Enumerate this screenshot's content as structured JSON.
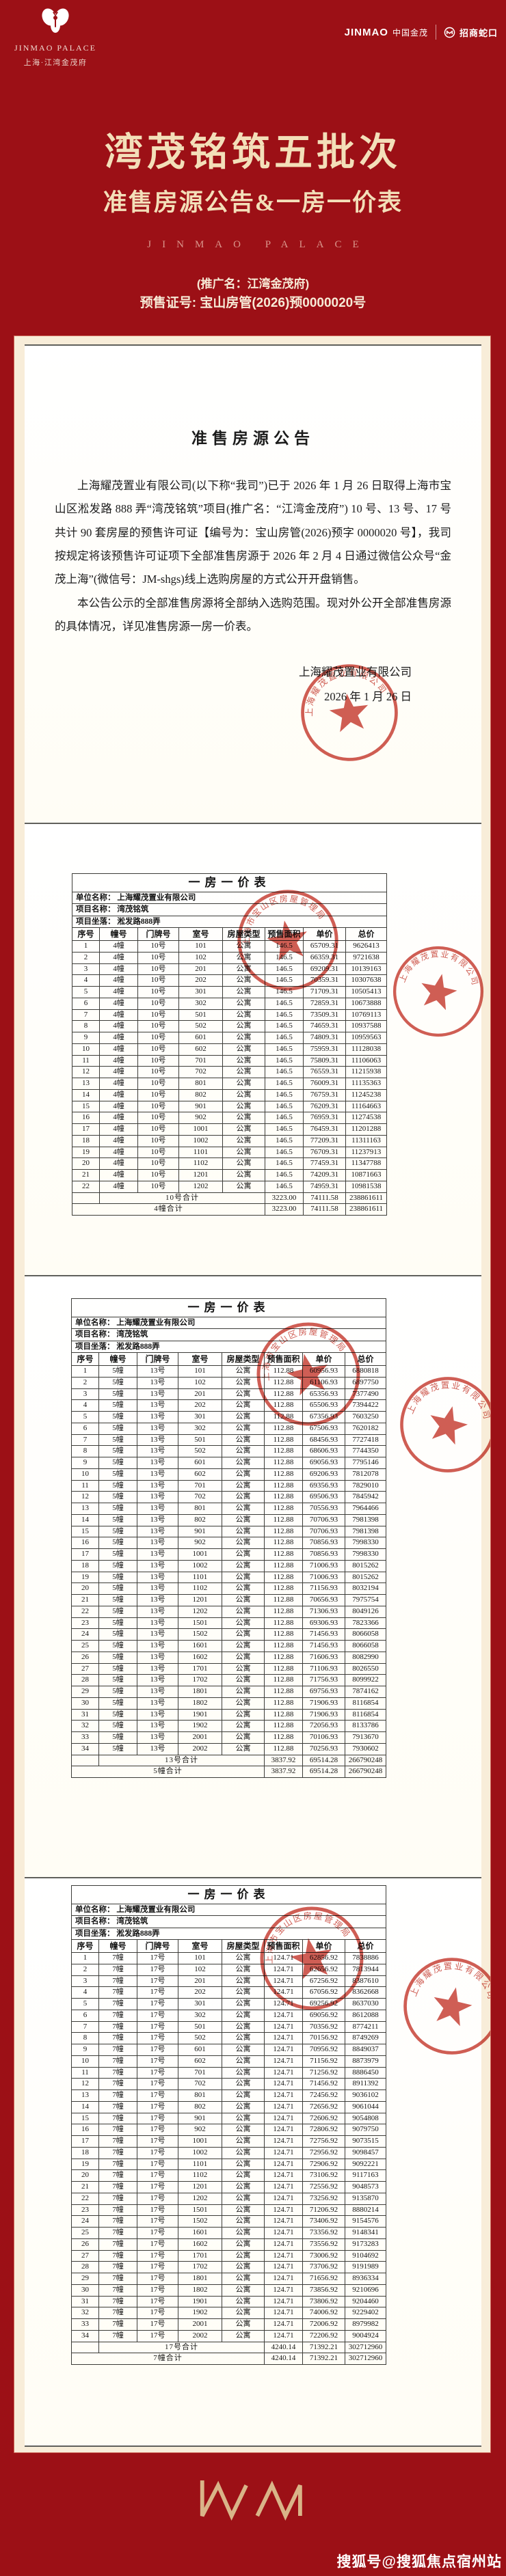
{
  "header": {
    "brand_en": "JINMAO PALACE",
    "brand_cn": "上海·江湾金茂府",
    "partner_jinmao": "JINMAO",
    "partner_jinmao_cn": "中国金茂",
    "partner_cmsk": "招商蛇口",
    "title": "湾茂铭筑五批次",
    "subtitle": "准售房源公告&一房一价表",
    "watermark_en": "JINMAO PALACE",
    "promo": "(推广名：江湾金茂府)",
    "license": "预售证号: 宝山房管(2026)预0000020号"
  },
  "announcement": {
    "title": "准售房源公告",
    "paragraphs": [
      "上海耀茂置业有限公司(以下称“我司”)已于 2026 年 1 月 26 日取得上海市宝山区淞发路 888 弄“湾茂铭筑”项目(推广名：“江湾金茂府”) 10 号、13 号、17 号共计 90 套房屋的预售许可证【编号为：宝山房管(2026)预字 0000020 号】，我司按规定将该预售许可证项下全部准售房源于 2026 年 2 月 4 日通过微信公众号“金茂上海”(微信号：JM-shgs)线上选购房屋的方式公开开盘销售。",
      "本公告公示的全部准售房源将全部纳入选购范围。现对外公开全部准售房源的具体情况，详见准售房源一房一价表。"
    ],
    "signature_company": "上海耀茂置业有限公司",
    "signature_date": "2026 年 1 月 26 日"
  },
  "stamps": {
    "company": "上海耀茂置业有限公司",
    "bureau": "上海市宝山区房屋管理局"
  },
  "colors": {
    "poster_red": "#9C1016",
    "title_cream": "#F3DFB9",
    "stamp_red": "#C43A2F",
    "frame_cream": "#F8EDD9",
    "logo_gold": "#D9B488"
  },
  "tables": [
    {
      "title": "一房一价表",
      "meta": [
        {
          "label": "单位名称：",
          "value": "上海耀茂置业有限公司"
        },
        {
          "label": "项目名称：",
          "value": "湾茂铭筑"
        },
        {
          "label": "项目坐落：",
          "value": "淞发路888弄"
        }
      ],
      "columns": [
        "序号",
        "幢号",
        "门牌号",
        "室号",
        "房屋类型",
        "预售面积",
        "单价",
        "总价"
      ],
      "rows": [
        [
          "1",
          "4幢",
          "10号",
          "101",
          "公寓",
          "146.5",
          "65709.31",
          "9626413"
        ],
        [
          "2",
          "4幢",
          "10号",
          "102",
          "公寓",
          "146.5",
          "66359.31",
          "9721638"
        ],
        [
          "3",
          "4幢",
          "10号",
          "201",
          "公寓",
          "146.5",
          "69209.31",
          "10139163"
        ],
        [
          "4",
          "4幢",
          "10号",
          "202",
          "公寓",
          "146.5",
          "70359.31",
          "10307638"
        ],
        [
          "5",
          "4幢",
          "10号",
          "301",
          "公寓",
          "146.5",
          "71709.31",
          "10505413"
        ],
        [
          "6",
          "4幢",
          "10号",
          "302",
          "公寓",
          "146.5",
          "72859.31",
          "10673888"
        ],
        [
          "7",
          "4幢",
          "10号",
          "501",
          "公寓",
          "146.5",
          "73509.31",
          "10769113"
        ],
        [
          "8",
          "4幢",
          "10号",
          "502",
          "公寓",
          "146.5",
          "74659.31",
          "10937588"
        ],
        [
          "9",
          "4幢",
          "10号",
          "601",
          "公寓",
          "146.5",
          "74809.31",
          "10959563"
        ],
        [
          "10",
          "4幢",
          "10号",
          "602",
          "公寓",
          "146.5",
          "75959.31",
          "11128038"
        ],
        [
          "11",
          "4幢",
          "10号",
          "701",
          "公寓",
          "146.5",
          "75809.31",
          "11106063"
        ],
        [
          "12",
          "4幢",
          "10号",
          "702",
          "公寓",
          "146.5",
          "76559.31",
          "11215938"
        ],
        [
          "13",
          "4幢",
          "10号",
          "801",
          "公寓",
          "146.5",
          "76009.31",
          "11135363"
        ],
        [
          "14",
          "4幢",
          "10号",
          "802",
          "公寓",
          "146.5",
          "76759.31",
          "11245238"
        ],
        [
          "15",
          "4幢",
          "10号",
          "901",
          "公寓",
          "146.5",
          "76209.31",
          "11164663"
        ],
        [
          "16",
          "4幢",
          "10号",
          "902",
          "公寓",
          "146.5",
          "76959.31",
          "11274538"
        ],
        [
          "17",
          "4幢",
          "10号",
          "1001",
          "公寓",
          "146.5",
          "76459.31",
          "11201288"
        ],
        [
          "18",
          "4幢",
          "10号",
          "1002",
          "公寓",
          "146.5",
          "77209.31",
          "11311163"
        ],
        [
          "19",
          "4幢",
          "10号",
          "1101",
          "公寓",
          "146.5",
          "76709.31",
          "11237913"
        ],
        [
          "20",
          "4幢",
          "10号",
          "1102",
          "公寓",
          "146.5",
          "77459.31",
          "11347788"
        ],
        [
          "21",
          "4幢",
          "10号",
          "1201",
          "公寓",
          "146.5",
          "74209.31",
          "10871663"
        ],
        [
          "22",
          "4幢",
          "10号",
          "1202",
          "公寓",
          "146.5",
          "74959.31",
          "10981538"
        ]
      ],
      "subtotal": {
        "label": "10号合计",
        "area": "3223.00",
        "unit": "74111.58",
        "total": "238861611"
      },
      "grand": {
        "label": "4幢合计",
        "area": "3223.00",
        "unit": "74111.58",
        "total": "238861611"
      }
    },
    {
      "title": "一房一价表",
      "meta": [
        {
          "label": "单位名称：",
          "value": "上海耀茂置业有限公司"
        },
        {
          "label": "项目名称：",
          "value": "湾茂铭筑"
        },
        {
          "label": "项目坐落：",
          "value": "淞发路888弄"
        }
      ],
      "columns": [
        "序号",
        "幢号",
        "门牌号",
        "室号",
        "房屋类型",
        "预售面积",
        "单价",
        "总价"
      ],
      "rows": [
        [
          "1",
          "5幢",
          "13号",
          "101",
          "公寓",
          "112.88",
          "60956.93",
          "6880818"
        ],
        [
          "2",
          "5幢",
          "13号",
          "102",
          "公寓",
          "112.88",
          "61106.93",
          "6897750"
        ],
        [
          "3",
          "5幢",
          "13号",
          "201",
          "公寓",
          "112.88",
          "65356.93",
          "7377490"
        ],
        [
          "4",
          "5幢",
          "13号",
          "202",
          "公寓",
          "112.88",
          "65506.93",
          "7394422"
        ],
        [
          "5",
          "5幢",
          "13号",
          "301",
          "公寓",
          "112.88",
          "67356.93",
          "7603250"
        ],
        [
          "6",
          "5幢",
          "13号",
          "302",
          "公寓",
          "112.88",
          "67506.93",
          "7620182"
        ],
        [
          "7",
          "5幢",
          "13号",
          "501",
          "公寓",
          "112.88",
          "68456.93",
          "7727418"
        ],
        [
          "8",
          "5幢",
          "13号",
          "502",
          "公寓",
          "112.88",
          "68606.93",
          "7744350"
        ],
        [
          "9",
          "5幢",
          "13号",
          "601",
          "公寓",
          "112.88",
          "69056.93",
          "7795146"
        ],
        [
          "10",
          "5幢",
          "13号",
          "602",
          "公寓",
          "112.88",
          "69206.93",
          "7812078"
        ],
        [
          "11",
          "5幢",
          "13号",
          "701",
          "公寓",
          "112.88",
          "69356.93",
          "7829010"
        ],
        [
          "12",
          "5幢",
          "13号",
          "702",
          "公寓",
          "112.88",
          "69506.93",
          "7845942"
        ],
        [
          "13",
          "5幢",
          "13号",
          "801",
          "公寓",
          "112.88",
          "70556.93",
          "7964466"
        ],
        [
          "14",
          "5幢",
          "13号",
          "802",
          "公寓",
          "112.88",
          "70706.93",
          "7981398"
        ],
        [
          "15",
          "5幢",
          "13号",
          "901",
          "公寓",
          "112.88",
          "70706.93",
          "7981398"
        ],
        [
          "16",
          "5幢",
          "13号",
          "902",
          "公寓",
          "112.88",
          "70856.93",
          "7998330"
        ],
        [
          "17",
          "5幢",
          "13号",
          "1001",
          "公寓",
          "112.88",
          "70856.93",
          "7998330"
        ],
        [
          "18",
          "5幢",
          "13号",
          "1002",
          "公寓",
          "112.88",
          "71006.93",
          "8015262"
        ],
        [
          "19",
          "5幢",
          "13号",
          "1101",
          "公寓",
          "112.88",
          "71006.93",
          "8015262"
        ],
        [
          "20",
          "5幢",
          "13号",
          "1102",
          "公寓",
          "112.88",
          "71156.93",
          "8032194"
        ],
        [
          "21",
          "5幢",
          "13号",
          "1201",
          "公寓",
          "112.88",
          "70656.93",
          "7975754"
        ],
        [
          "22",
          "5幢",
          "13号",
          "1202",
          "公寓",
          "112.88",
          "71306.93",
          "8049126"
        ],
        [
          "23",
          "5幢",
          "13号",
          "1501",
          "公寓",
          "112.88",
          "69306.93",
          "7823366"
        ],
        [
          "24",
          "5幢",
          "13号",
          "1502",
          "公寓",
          "112.88",
          "71456.93",
          "8066058"
        ],
        [
          "25",
          "5幢",
          "13号",
          "1601",
          "公寓",
          "112.88",
          "71456.93",
          "8066058"
        ],
        [
          "26",
          "5幢",
          "13号",
          "1602",
          "公寓",
          "112.88",
          "71606.93",
          "8082990"
        ],
        [
          "27",
          "5幢",
          "13号",
          "1701",
          "公寓",
          "112.88",
          "71106.93",
          "8026550"
        ],
        [
          "28",
          "5幢",
          "13号",
          "1702",
          "公寓",
          "112.88",
          "71756.93",
          "8099922"
        ],
        [
          "29",
          "5幢",
          "13号",
          "1801",
          "公寓",
          "112.88",
          "69756.93",
          "7874162"
        ],
        [
          "30",
          "5幢",
          "13号",
          "1802",
          "公寓",
          "112.88",
          "71906.93",
          "8116854"
        ],
        [
          "31",
          "5幢",
          "13号",
          "1901",
          "公寓",
          "112.88",
          "71906.93",
          "8116854"
        ],
        [
          "32",
          "5幢",
          "13号",
          "1902",
          "公寓",
          "112.88",
          "72056.93",
          "8133786"
        ],
        [
          "33",
          "5幢",
          "13号",
          "2001",
          "公寓",
          "112.88",
          "70106.93",
          "7913670"
        ],
        [
          "34",
          "5幢",
          "13号",
          "2002",
          "公寓",
          "112.88",
          "70256.93",
          "7930602"
        ]
      ],
      "subtotal": {
        "label": "13号合计",
        "area": "3837.92",
        "unit": "69514.28",
        "total": "266790248"
      },
      "grand": {
        "label": "5幢合计",
        "area": "3837.92",
        "unit": "69514.28",
        "total": "266790248"
      }
    },
    {
      "title": "一房一价表",
      "meta": [
        {
          "label": "单位名称：",
          "value": "上海耀茂置业有限公司"
        },
        {
          "label": "项目名称：",
          "value": "湾茂铭筑"
        },
        {
          "label": "项目坐落：",
          "value": "淞发路888弄"
        }
      ],
      "columns": [
        "序号",
        "幢号",
        "门牌号",
        "室号",
        "房屋类型",
        "预售面积",
        "单价",
        "总价"
      ],
      "rows": [
        [
          "1",
          "7幢",
          "17号",
          "101",
          "公寓",
          "124.71",
          "62856.92",
          "7838886"
        ],
        [
          "2",
          "7幢",
          "17号",
          "102",
          "公寓",
          "124.71",
          "62656.92",
          "7813944"
        ],
        [
          "3",
          "7幢",
          "17号",
          "201",
          "公寓",
          "124.71",
          "67256.92",
          "8387610"
        ],
        [
          "4",
          "7幢",
          "17号",
          "202",
          "公寓",
          "124.71",
          "67056.92",
          "8362668"
        ],
        [
          "5",
          "7幢",
          "17号",
          "301",
          "公寓",
          "124.71",
          "69256.92",
          "8637030"
        ],
        [
          "6",
          "7幢",
          "17号",
          "302",
          "公寓",
          "124.71",
          "69056.92",
          "8612088"
        ],
        [
          "7",
          "7幢",
          "17号",
          "501",
          "公寓",
          "124.71",
          "70356.92",
          "8774211"
        ],
        [
          "8",
          "7幢",
          "17号",
          "502",
          "公寓",
          "124.71",
          "70156.92",
          "8749269"
        ],
        [
          "9",
          "7幢",
          "17号",
          "601",
          "公寓",
          "124.71",
          "70956.92",
          "8849037"
        ],
        [
          "10",
          "7幢",
          "17号",
          "602",
          "公寓",
          "124.71",
          "71156.92",
          "8873979"
        ],
        [
          "11",
          "7幢",
          "17号",
          "701",
          "公寓",
          "124.71",
          "71256.92",
          "8886450"
        ],
        [
          "12",
          "7幢",
          "17号",
          "702",
          "公寓",
          "124.71",
          "71456.92",
          "8911392"
        ],
        [
          "13",
          "7幢",
          "17号",
          "801",
          "公寓",
          "124.71",
          "72456.92",
          "9036102"
        ],
        [
          "14",
          "7幢",
          "17号",
          "802",
          "公寓",
          "124.71",
          "72656.92",
          "9061044"
        ],
        [
          "15",
          "7幢",
          "17号",
          "901",
          "公寓",
          "124.71",
          "72606.92",
          "9054808"
        ],
        [
          "16",
          "7幢",
          "17号",
          "902",
          "公寓",
          "124.71",
          "72806.92",
          "9079750"
        ],
        [
          "17",
          "7幢",
          "17号",
          "1001",
          "公寓",
          "124.71",
          "72756.92",
          "9073515"
        ],
        [
          "18",
          "7幢",
          "17号",
          "1002",
          "公寓",
          "124.71",
          "72956.92",
          "9098457"
        ],
        [
          "19",
          "7幢",
          "17号",
          "1101",
          "公寓",
          "124.71",
          "72906.92",
          "9092221"
        ],
        [
          "20",
          "7幢",
          "17号",
          "1102",
          "公寓",
          "124.71",
          "73106.92",
          "9117163"
        ],
        [
          "21",
          "7幢",
          "17号",
          "1201",
          "公寓",
          "124.71",
          "72556.92",
          "9048573"
        ],
        [
          "22",
          "7幢",
          "17号",
          "1202",
          "公寓",
          "124.71",
          "73256.92",
          "9135870"
        ],
        [
          "23",
          "7幢",
          "17号",
          "1501",
          "公寓",
          "124.71",
          "71206.92",
          "8880214"
        ],
        [
          "24",
          "7幢",
          "17号",
          "1502",
          "公寓",
          "124.71",
          "73406.92",
          "9154576"
        ],
        [
          "25",
          "7幢",
          "17号",
          "1601",
          "公寓",
          "124.71",
          "73356.92",
          "9148341"
        ],
        [
          "26",
          "7幢",
          "17号",
          "1602",
          "公寓",
          "124.71",
          "73556.92",
          "9173283"
        ],
        [
          "27",
          "7幢",
          "17号",
          "1701",
          "公寓",
          "124.71",
          "73006.92",
          "9104692"
        ],
        [
          "28",
          "7幢",
          "17号",
          "1702",
          "公寓",
          "124.71",
          "73706.92",
          "9191989"
        ],
        [
          "29",
          "7幢",
          "17号",
          "1801",
          "公寓",
          "124.71",
          "71656.92",
          "8936334"
        ],
        [
          "30",
          "7幢",
          "17号",
          "1802",
          "公寓",
          "124.71",
          "73856.92",
          "9210696"
        ],
        [
          "31",
          "7幢",
          "17号",
          "1901",
          "公寓",
          "124.71",
          "73806.92",
          "9204460"
        ],
        [
          "32",
          "7幢",
          "17号",
          "1902",
          "公寓",
          "124.71",
          "74006.92",
          "9229402"
        ],
        [
          "33",
          "7幢",
          "17号",
          "2001",
          "公寓",
          "124.71",
          "72006.92",
          "8979982"
        ],
        [
          "34",
          "7幢",
          "17号",
          "2002",
          "公寓",
          "124.71",
          "72206.92",
          "9004924"
        ]
      ],
      "subtotal": {
        "label": "17号合计",
        "area": "4240.14",
        "unit": "71392.21",
        "total": "302712960"
      },
      "grand": {
        "label": "7幢合计",
        "area": "4240.14",
        "unit": "71392.21",
        "total": "302712960"
      }
    }
  ],
  "footer": {
    "watermark": "搜狐号@搜狐焦点宿州站"
  }
}
